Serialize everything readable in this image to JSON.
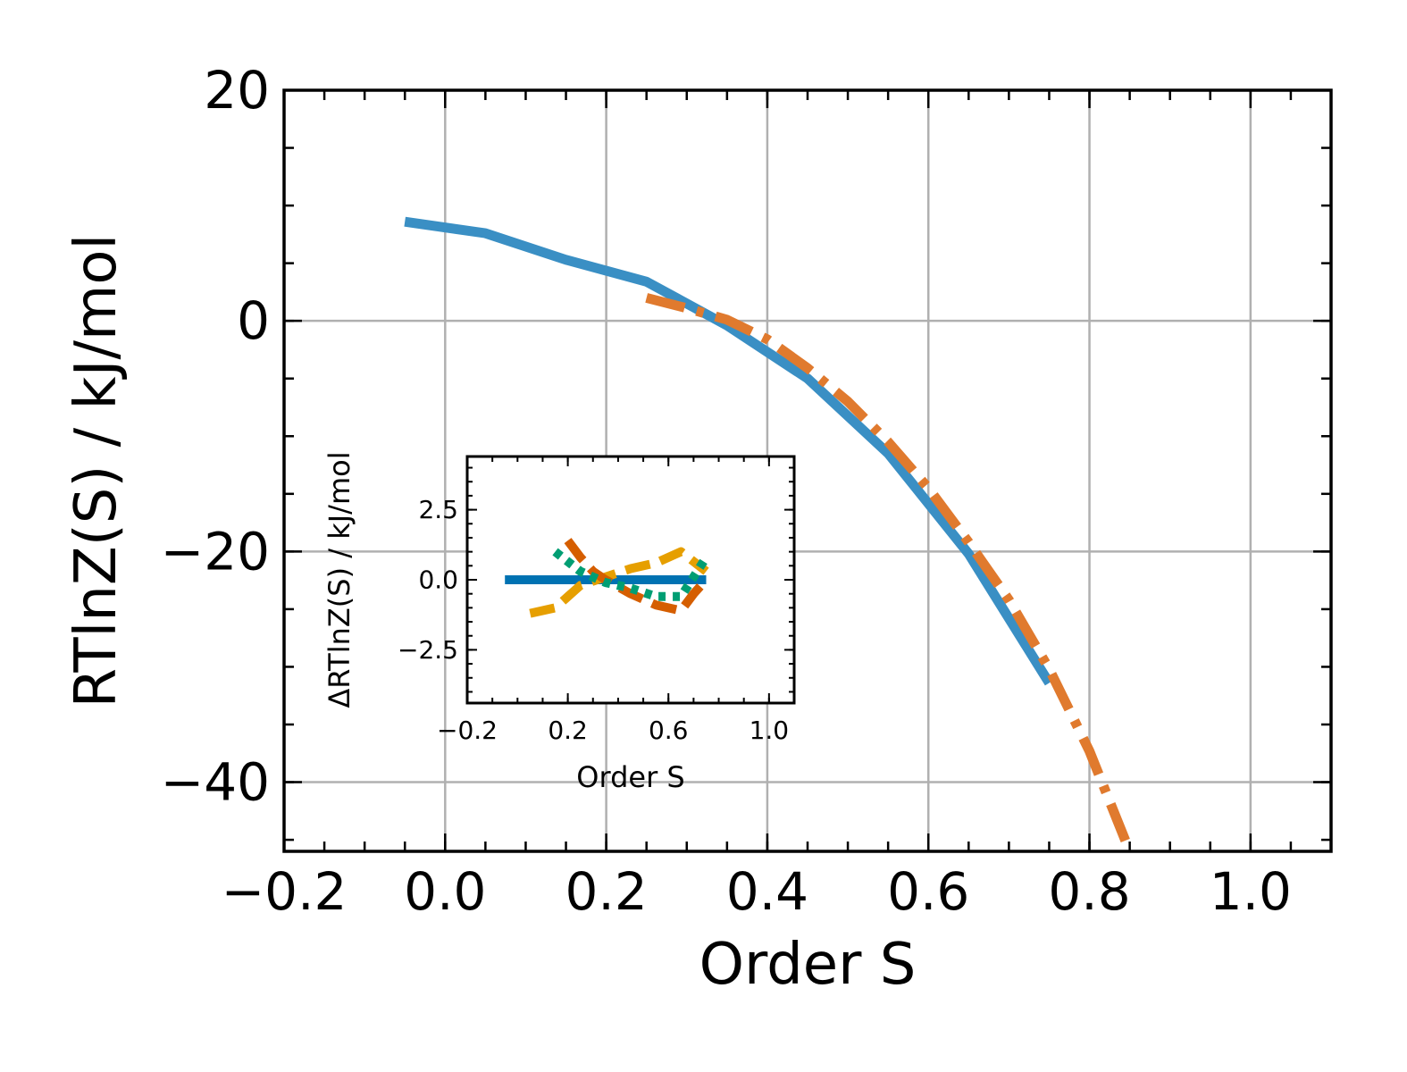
{
  "chart_data": [
    {
      "type": "line",
      "title": "",
      "xlabel": "Order S",
      "ylabel": "RTlnZ(S) / kJ/mol",
      "xlim": [
        -0.2,
        1.1
      ],
      "ylim": [
        -46,
        20
      ],
      "xticks": [
        "−0.2",
        "0.0",
        "0.2",
        "0.4",
        "0.6",
        "0.8",
        "1.0"
      ],
      "xtick_values": [
        -0.2,
        0.0,
        0.2,
        0.4,
        0.6,
        0.8,
        1.0
      ],
      "yticks": [
        "20",
        "0",
        "−20",
        "−40"
      ],
      "ytick_values": [
        20,
        0,
        -20,
        -40
      ],
      "grid": true,
      "series": [
        {
          "color": "#3a8fc4",
          "style": "solid",
          "x": [
            -0.05,
            0.05,
            0.15,
            0.25,
            0.35,
            0.45,
            0.55,
            0.65,
            0.75
          ],
          "y": [
            8.6,
            7.6,
            5.3,
            3.4,
            -0.4,
            -5.0,
            -11.5,
            -20.2,
            -31.4
          ]
        },
        {
          "color": "#e07a2e",
          "style": "dashdot",
          "x": [
            0.25,
            0.3,
            0.35,
            0.4,
            0.45,
            0.5,
            0.55,
            0.6,
            0.65,
            0.7,
            0.75,
            0.8,
            0.85
          ],
          "y": [
            2.0,
            1.1,
            0.1,
            -1.6,
            -4.1,
            -7.0,
            -10.5,
            -14.5,
            -19.2,
            -24.2,
            -30.2,
            -37.3,
            -46.0
          ]
        }
      ]
    },
    {
      "type": "line",
      "title": "",
      "xlabel": "Order S",
      "ylabel": "ΔRTlnZ(S) / kJ/mol",
      "xlim": [
        -0.2,
        1.1
      ],
      "ylim": [
        -4.4,
        4.4
      ],
      "xticks": [
        "−0.2",
        "0.2",
        "0.6",
        "1.0"
      ],
      "xtick_values": [
        -0.2,
        0.2,
        0.6,
        1.0
      ],
      "yticks": [
        "2.5",
        "0.0",
        "−2.5"
      ],
      "ytick_values": [
        2.5,
        0.0,
        -2.5
      ],
      "grid": false,
      "series": [
        {
          "color": "#0072b2",
          "style": "solid",
          "x": [
            -0.05,
            0.75
          ],
          "y": [
            0.0,
            0.0
          ]
        },
        {
          "color": "#e69f00",
          "style": "dashed",
          "x": [
            0.05,
            0.15,
            0.25,
            0.35,
            0.45,
            0.55,
            0.65,
            0.75
          ],
          "y": [
            -1.2,
            -1.0,
            -0.2,
            0.1,
            0.4,
            0.6,
            1.0,
            0.3
          ]
        },
        {
          "color": "#d55e00",
          "style": "dashed",
          "x": [
            0.2,
            0.25,
            0.3,
            0.35,
            0.45,
            0.55,
            0.65,
            0.7,
            0.75
          ],
          "y": [
            1.4,
            0.8,
            0.3,
            0.0,
            -0.5,
            -0.9,
            -1.1,
            -0.5,
            0.0
          ]
        },
        {
          "color": "#009e73",
          "style": "dotted",
          "x": [
            0.15,
            0.25,
            0.35,
            0.45,
            0.55,
            0.65,
            0.75
          ],
          "y": [
            1.0,
            0.3,
            -0.1,
            -0.3,
            -0.6,
            -0.6,
            0.8
          ]
        }
      ]
    }
  ]
}
